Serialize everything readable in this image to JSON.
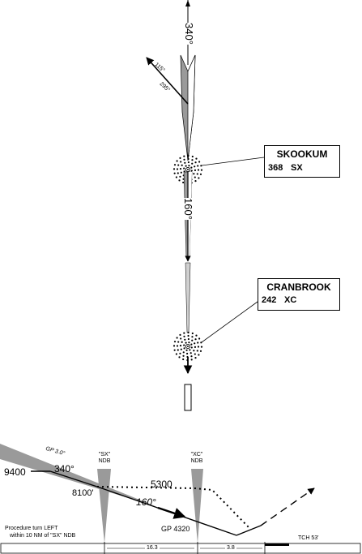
{
  "plan": {
    "inbound_course": "340°",
    "outbound_course": "160°",
    "pt_outbound": "115°",
    "pt_inbound": "295°"
  },
  "fixes": [
    {
      "name": "SKOOKUM",
      "freq": "368",
      "ident": "SX"
    },
    {
      "name": "CRANBROOK",
      "freq": "242",
      "ident": "XC"
    }
  ],
  "profile": {
    "gp_angle": "GP 3.0°",
    "sx_label": "\"SX\"",
    "sx_sub": "NDB",
    "xc_label": "\"XC\"",
    "xc_sub": "NDB",
    "alt_9400": "9400",
    "course_340": "340°",
    "alt_8100": "8100'",
    "alt_5300": "5300",
    "course_160": "160°",
    "gp_4320": "GP 4320",
    "note_line1": "Procedure turn LEFT",
    "note_line2": "within 10 NM of \"SX\" NDB",
    "dist_1": "16.3",
    "dist_2": "3.8",
    "tch": "TCH 53'"
  }
}
